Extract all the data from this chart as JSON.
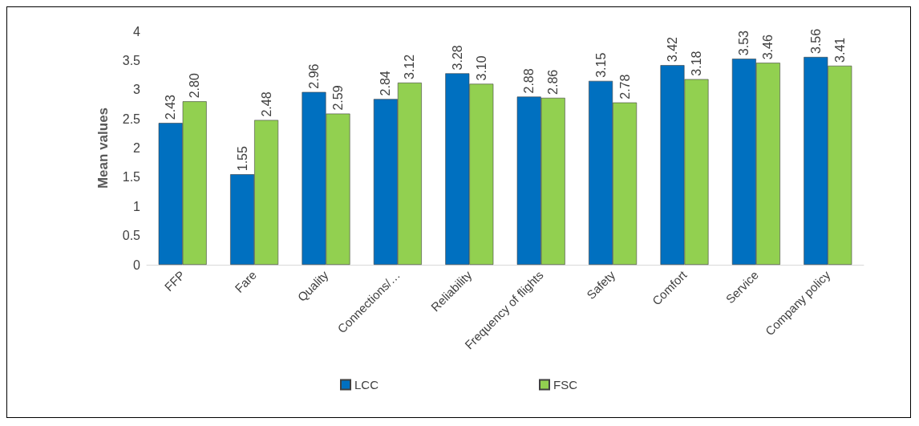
{
  "chart_data": {
    "type": "bar",
    "ylabel": "Mean values",
    "categories": [
      "FFP",
      "Fare",
      "Quality",
      "Connections/…",
      "Reliability",
      "Frequency of flights",
      "Safety",
      "Comfort",
      "Service",
      "Company policy"
    ],
    "series": [
      {
        "name": "LCC",
        "color": "#0070c0",
        "values": [
          2.43,
          1.55,
          2.96,
          2.84,
          3.28,
          2.88,
          3.15,
          3.42,
          3.53,
          3.56
        ],
        "value_labels": [
          "2.43",
          "1.55",
          "2.96",
          "2.84",
          "3.28",
          "2.88",
          "3.15",
          "3.42",
          "3.53",
          "3.56"
        ]
      },
      {
        "name": "FSC",
        "color": "#92d050",
        "values": [
          2.8,
          2.48,
          2.59,
          3.12,
          3.1,
          2.86,
          2.78,
          3.18,
          3.46,
          3.41
        ],
        "value_labels": [
          "2.80",
          "2.48",
          "2.59",
          "3.12",
          "3.10",
          "2.86",
          "2.78",
          "3.18",
          "3.46",
          "3.41"
        ]
      }
    ],
    "ylim": [
      0,
      4
    ],
    "yticks": [
      0,
      0.5,
      1,
      1.5,
      2,
      2.5,
      3,
      3.5,
      4
    ],
    "grid": false,
    "legend": "bottom"
  }
}
